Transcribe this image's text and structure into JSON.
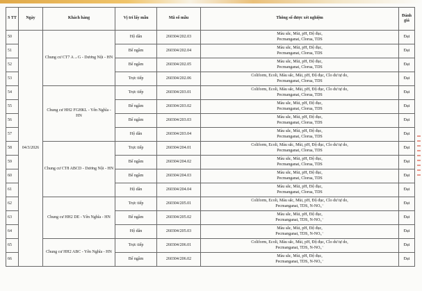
{
  "headers": {
    "stt": "S TT",
    "date": "Ngày",
    "customer": "Khách hàng",
    "location": "Vị trí lấy mẫu",
    "code": "Mã số mẫu",
    "params": "Thông số được xét nghiệm",
    "result": "Đánh giá"
  },
  "date": "04/3/2026",
  "params_text": {
    "basic": [
      "Màu sắc, Mùi, pH, Độ đục,",
      "Pecmanganat, Clorua, TDS"
    ],
    "full": [
      "Coliform, Ecoli, Màu sắc, Mùi, pH, Độ đục, Clo dư tự do,",
      "Pecmanganat, Clorua, TDS"
    ],
    "basic_no3": [
      "Màu sắc, Mùi, pH, Độ đục,",
      "Pecmanganat, TDS, N-NO₃⁻"
    ],
    "full_no3": [
      "Coliform, Ecoli, Màu sắc, Mùi, pH, Độ đục, Clo dư tự do,",
      "Pecmanganat, TDS, N-NO₃⁻"
    ]
  },
  "groups": [
    {
      "customer": "Chung cư CT7 A→G - Dương Nội - HN",
      "rows": [
        {
          "stt": "50",
          "location": "Hộ dân",
          "code": "260304/202.03",
          "params": "basic",
          "result": "Đạt"
        },
        {
          "stt": "51",
          "location": "Bể ngầm",
          "code": "260304/202.04",
          "params": "basic",
          "result": "Đạt"
        },
        {
          "stt": "52",
          "location": "Bể ngầm",
          "code": "260304/202.05",
          "params": "basic",
          "result": "Đạt"
        },
        {
          "stt": "53",
          "location": "Trực tiếp",
          "code": "260304/202.06",
          "params": "full",
          "result": "Đạt"
        }
      ]
    },
    {
      "customer": "Chung cư HH2 FGHKL - Yên Nghĩa - HN",
      "rows": [
        {
          "stt": "54",
          "location": "Trực tiếp",
          "code": "260304/203.01",
          "params": "full",
          "result": "Đạt"
        },
        {
          "stt": "55",
          "location": "Bể ngầm",
          "code": "260304/203.02",
          "params": "basic",
          "result": "Đạt"
        },
        {
          "stt": "56",
          "location": "Bể ngầm",
          "code": "260304/203.03",
          "params": "basic",
          "result": "Đạt"
        },
        {
          "stt": "57",
          "location": "Hộ dân",
          "code": "260304/203.04",
          "params": "basic",
          "result": "Đạt"
        }
      ]
    },
    {
      "customer": "Chung cư CT8 ABCD  - Dương Nội - HN",
      "rows": [
        {
          "stt": "58",
          "location": "Trực tiếp",
          "code": "260304/204.01",
          "params": "full",
          "result": "Đạt"
        },
        {
          "stt": "59",
          "location": "Bể ngầm",
          "code": "260304/204.02",
          "params": "basic",
          "result": "Đạt"
        },
        {
          "stt": "60",
          "location": "Bể ngầm",
          "code": "260304/204.03",
          "params": "basic",
          "result": "Đạt"
        },
        {
          "stt": "61",
          "location": "Hộ dân",
          "code": "260304/204.04",
          "params": "basic",
          "result": "Đạt"
        }
      ]
    },
    {
      "customer": "Chung cư HH2 DE - Yên Nghĩa - HN",
      "rows": [
        {
          "stt": "62",
          "location": "Trực tiếp",
          "code": "260304/205.01",
          "params": "full_no3",
          "result": "Đạt"
        },
        {
          "stt": "63",
          "location": "Bể ngầm",
          "code": "260304/205.02",
          "params": "basic_no3",
          "result": "Đạt"
        },
        {
          "stt": "64",
          "location": "Hộ dân",
          "code": "260304/205.03",
          "params": "basic_no3",
          "result": "Đạt"
        }
      ]
    },
    {
      "customer": "Chung cư HH2 ABC - Yên Nghĩa - HN",
      "rows": [
        {
          "stt": "65",
          "location": "Trực tiếp",
          "code": "260304/206.01",
          "params": "full_no3",
          "result": "Đạt"
        },
        {
          "stt": "66",
          "location": "Bể ngầm",
          "code": "260304/206.02",
          "params": "basic_no3",
          "result": "Đạt"
        }
      ]
    }
  ]
}
